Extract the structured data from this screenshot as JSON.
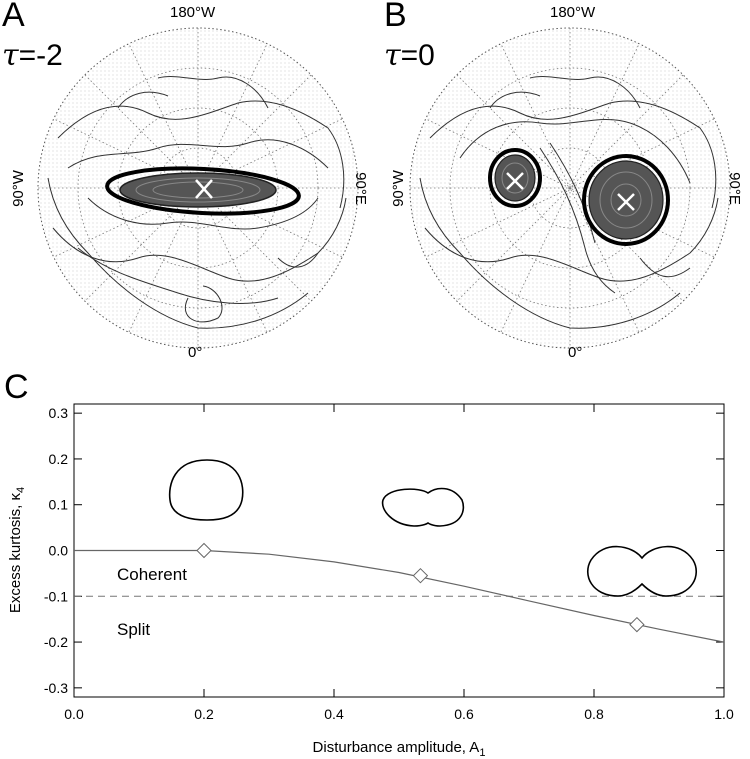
{
  "panels": {
    "a": {
      "letter": "A",
      "tau_symbol": "τ",
      "tau_value": "=-2",
      "lon_top": "180°W",
      "lon_bottom": "0°",
      "lon_left": "90°W",
      "lon_right": "90°E"
    },
    "b": {
      "letter": "B",
      "tau_symbol": "τ",
      "tau_value": "=0",
      "lon_top": "180°W",
      "lon_bottom": "0°",
      "lon_left": "90°W",
      "lon_right": "90°E"
    },
    "c": {
      "letter": "C"
    }
  },
  "chart_data": {
    "type": "line",
    "xlabel": "Disturbance amplitude, A",
    "xlabel_sub": "1",
    "ylabel": "Excess kurtosis, κ",
    "ylabel_sub": "4",
    "xlim": [
      0.0,
      1.0
    ],
    "ylim": [
      -0.32,
      0.32
    ],
    "x_ticks": [
      "0.0",
      "0.2",
      "0.4",
      "0.6",
      "0.8",
      "1.0"
    ],
    "y_ticks": [
      "0.3",
      "0.2",
      "0.1",
      "0.0",
      "-0.1",
      "-0.2",
      "-0.3"
    ],
    "series": [
      {
        "x": [
          0.0,
          0.1,
          0.2,
          0.3,
          0.4,
          0.5,
          0.6,
          0.7,
          0.8,
          0.9,
          1.0
        ],
        "y": [
          0.0,
          0.0,
          0.0,
          -0.008,
          -0.025,
          -0.048,
          -0.078,
          -0.11,
          -0.142,
          -0.172,
          -0.2
        ]
      }
    ],
    "markers": [
      {
        "x": 0.2,
        "y": 0.0
      },
      {
        "x": 0.533,
        "y": -0.055
      },
      {
        "x": 0.866,
        "y": -0.162
      }
    ],
    "threshold": {
      "y": -0.1,
      "style": "dashed"
    },
    "annotations": {
      "above_threshold": "Coherent",
      "below_threshold": "Split"
    }
  }
}
